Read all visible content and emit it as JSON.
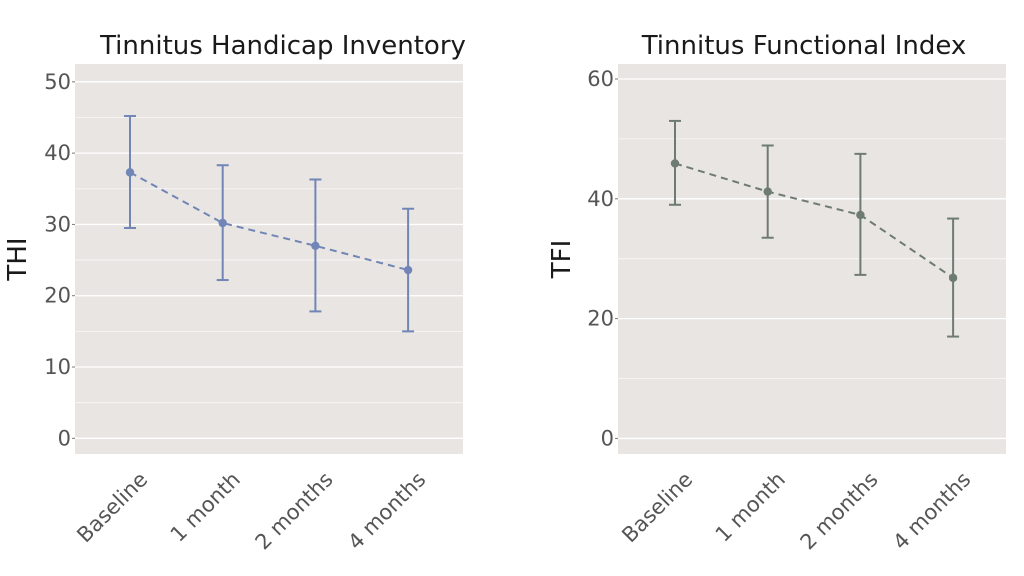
{
  "chart_data": [
    {
      "type": "line",
      "title": "Tinnitus Handicap Inventory",
      "xlabel": "",
      "ylabel": "THI",
      "categories": [
        "Baseline",
        "1 month",
        "2 months",
        "4 months"
      ],
      "ylim": [
        -2.2,
        52.5
      ],
      "yticks": [
        0,
        10,
        20,
        30,
        40,
        50
      ],
      "grid": true,
      "color": "#7185b6",
      "line_style": "dashed",
      "series": [
        {
          "values": [
            37.3,
            30.2,
            27.0,
            23.6
          ],
          "error_low": [
            29.5,
            22.2,
            17.8,
            15.0
          ],
          "error_high": [
            45.2,
            38.3,
            36.3,
            32.2
          ]
        }
      ]
    },
    {
      "type": "line",
      "title": "Tinnitus Functional Index",
      "xlabel": "",
      "ylabel": "TFI",
      "categories": [
        "Baseline",
        "1 month",
        "2 months",
        "4 months"
      ],
      "ylim": [
        -2.6,
        62.5
      ],
      "yticks": [
        0,
        20,
        40,
        60
      ],
      "grid": true,
      "color": "#6e7b72",
      "line_style": "dashed",
      "series": [
        {
          "values": [
            45.9,
            41.2,
            37.3,
            26.8
          ],
          "error_low": [
            39.0,
            33.5,
            27.3,
            17.0
          ],
          "error_high": [
            53.0,
            48.9,
            47.5,
            36.7
          ]
        }
      ]
    }
  ]
}
